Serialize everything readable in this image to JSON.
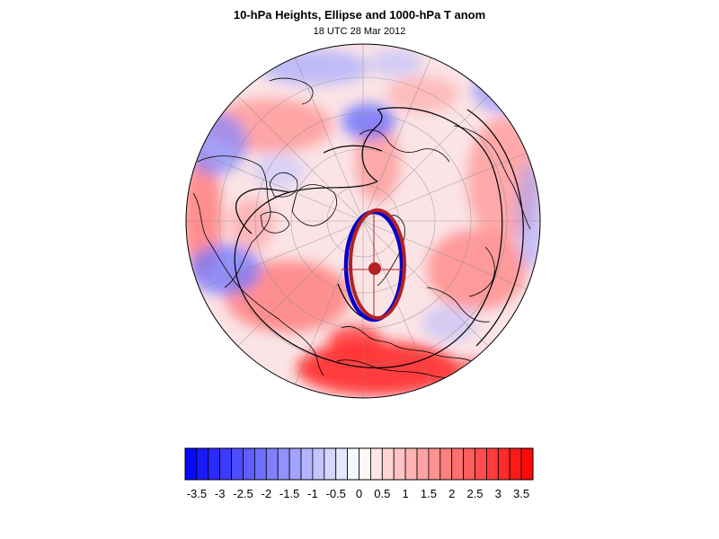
{
  "figure": {
    "title": "10-hPa Heights, Ellipse and 1000-hPa T anom",
    "subtitle": "18 UTC 28 Mar 2012"
  },
  "colors": {
    "low": "#0000ff",
    "mid": "#ffffff",
    "high": "#ff0000",
    "ellipse_outer": "#0000cc",
    "ellipse_inner": "#b22222",
    "center_marker": "#b22222",
    "height_contours": "#000000",
    "coastlines": "#000000"
  },
  "colorbar": {
    "labels": [
      "-3.5",
      "-3",
      "-2.5",
      "-2",
      "-1.5",
      "-1",
      "-0.5",
      "0",
      "0.5",
      "1",
      "1.5",
      "2",
      "2.5",
      "3",
      "3.5"
    ],
    "min": -3.75,
    "max": 3.75,
    "step": 0.25
  },
  "map": {
    "projection": "polar stereographic (north pole)",
    "field": "1000-hPa temperature anomaly",
    "overlays": [
      "10-hPa height contours",
      "vortex ellipse",
      "vortex centroid"
    ]
  }
}
